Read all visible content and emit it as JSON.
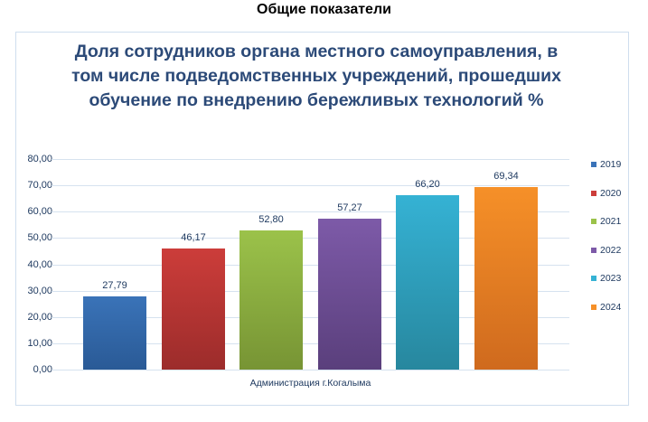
{
  "page": {
    "heading": "Общие показатели"
  },
  "chart_data": {
    "type": "bar",
    "title": "Доля сотрудников органа местного самоуправления, в том числе подведомственных учреждений, прошедших обучение по внедрению бережливых технологий %",
    "title_lines": [
      "Доля сотрудников органа местного самоуправления, в",
      "том числе подведомственных учреждений, прошедших",
      "обучение по внедрению бережливых технологий %"
    ],
    "categories": [
      "Администрация г.Когалыма"
    ],
    "xlabel": "Администрация г.Когалыма",
    "ylabel": "",
    "ylim": [
      0,
      80
    ],
    "y_ticks": [
      "80,00",
      "70,00",
      "60,00",
      "50,00",
      "40,00",
      "30,00",
      "20,00",
      "10,00",
      "0,00"
    ],
    "grid": true,
    "legend_position": "right",
    "series": [
      {
        "name": "2019",
        "values": [
          27.79
        ],
        "label": "27,79",
        "color": "#3a73b8",
        "color_dark": "#2a5a96"
      },
      {
        "name": "2020",
        "values": [
          46.17
        ],
        "label": "46,17",
        "color": "#cc3d3a",
        "color_dark": "#9c2c2b"
      },
      {
        "name": "2021",
        "values": [
          52.8
        ],
        "label": "52,80",
        "color": "#9bc24a",
        "color_dark": "#779434"
      },
      {
        "name": "2022",
        "values": [
          57.27
        ],
        "label": "57,27",
        "color": "#7d5aa8",
        "color_dark": "#5a3f7c"
      },
      {
        "name": "2023",
        "values": [
          66.2
        ],
        "label": "66,20",
        "color": "#35b2d4",
        "color_dark": "#27879e"
      },
      {
        "name": "2024",
        "values": [
          69.34
        ],
        "label": "69,34",
        "color": "#f69028",
        "color_dark": "#cf6a1e"
      }
    ]
  }
}
